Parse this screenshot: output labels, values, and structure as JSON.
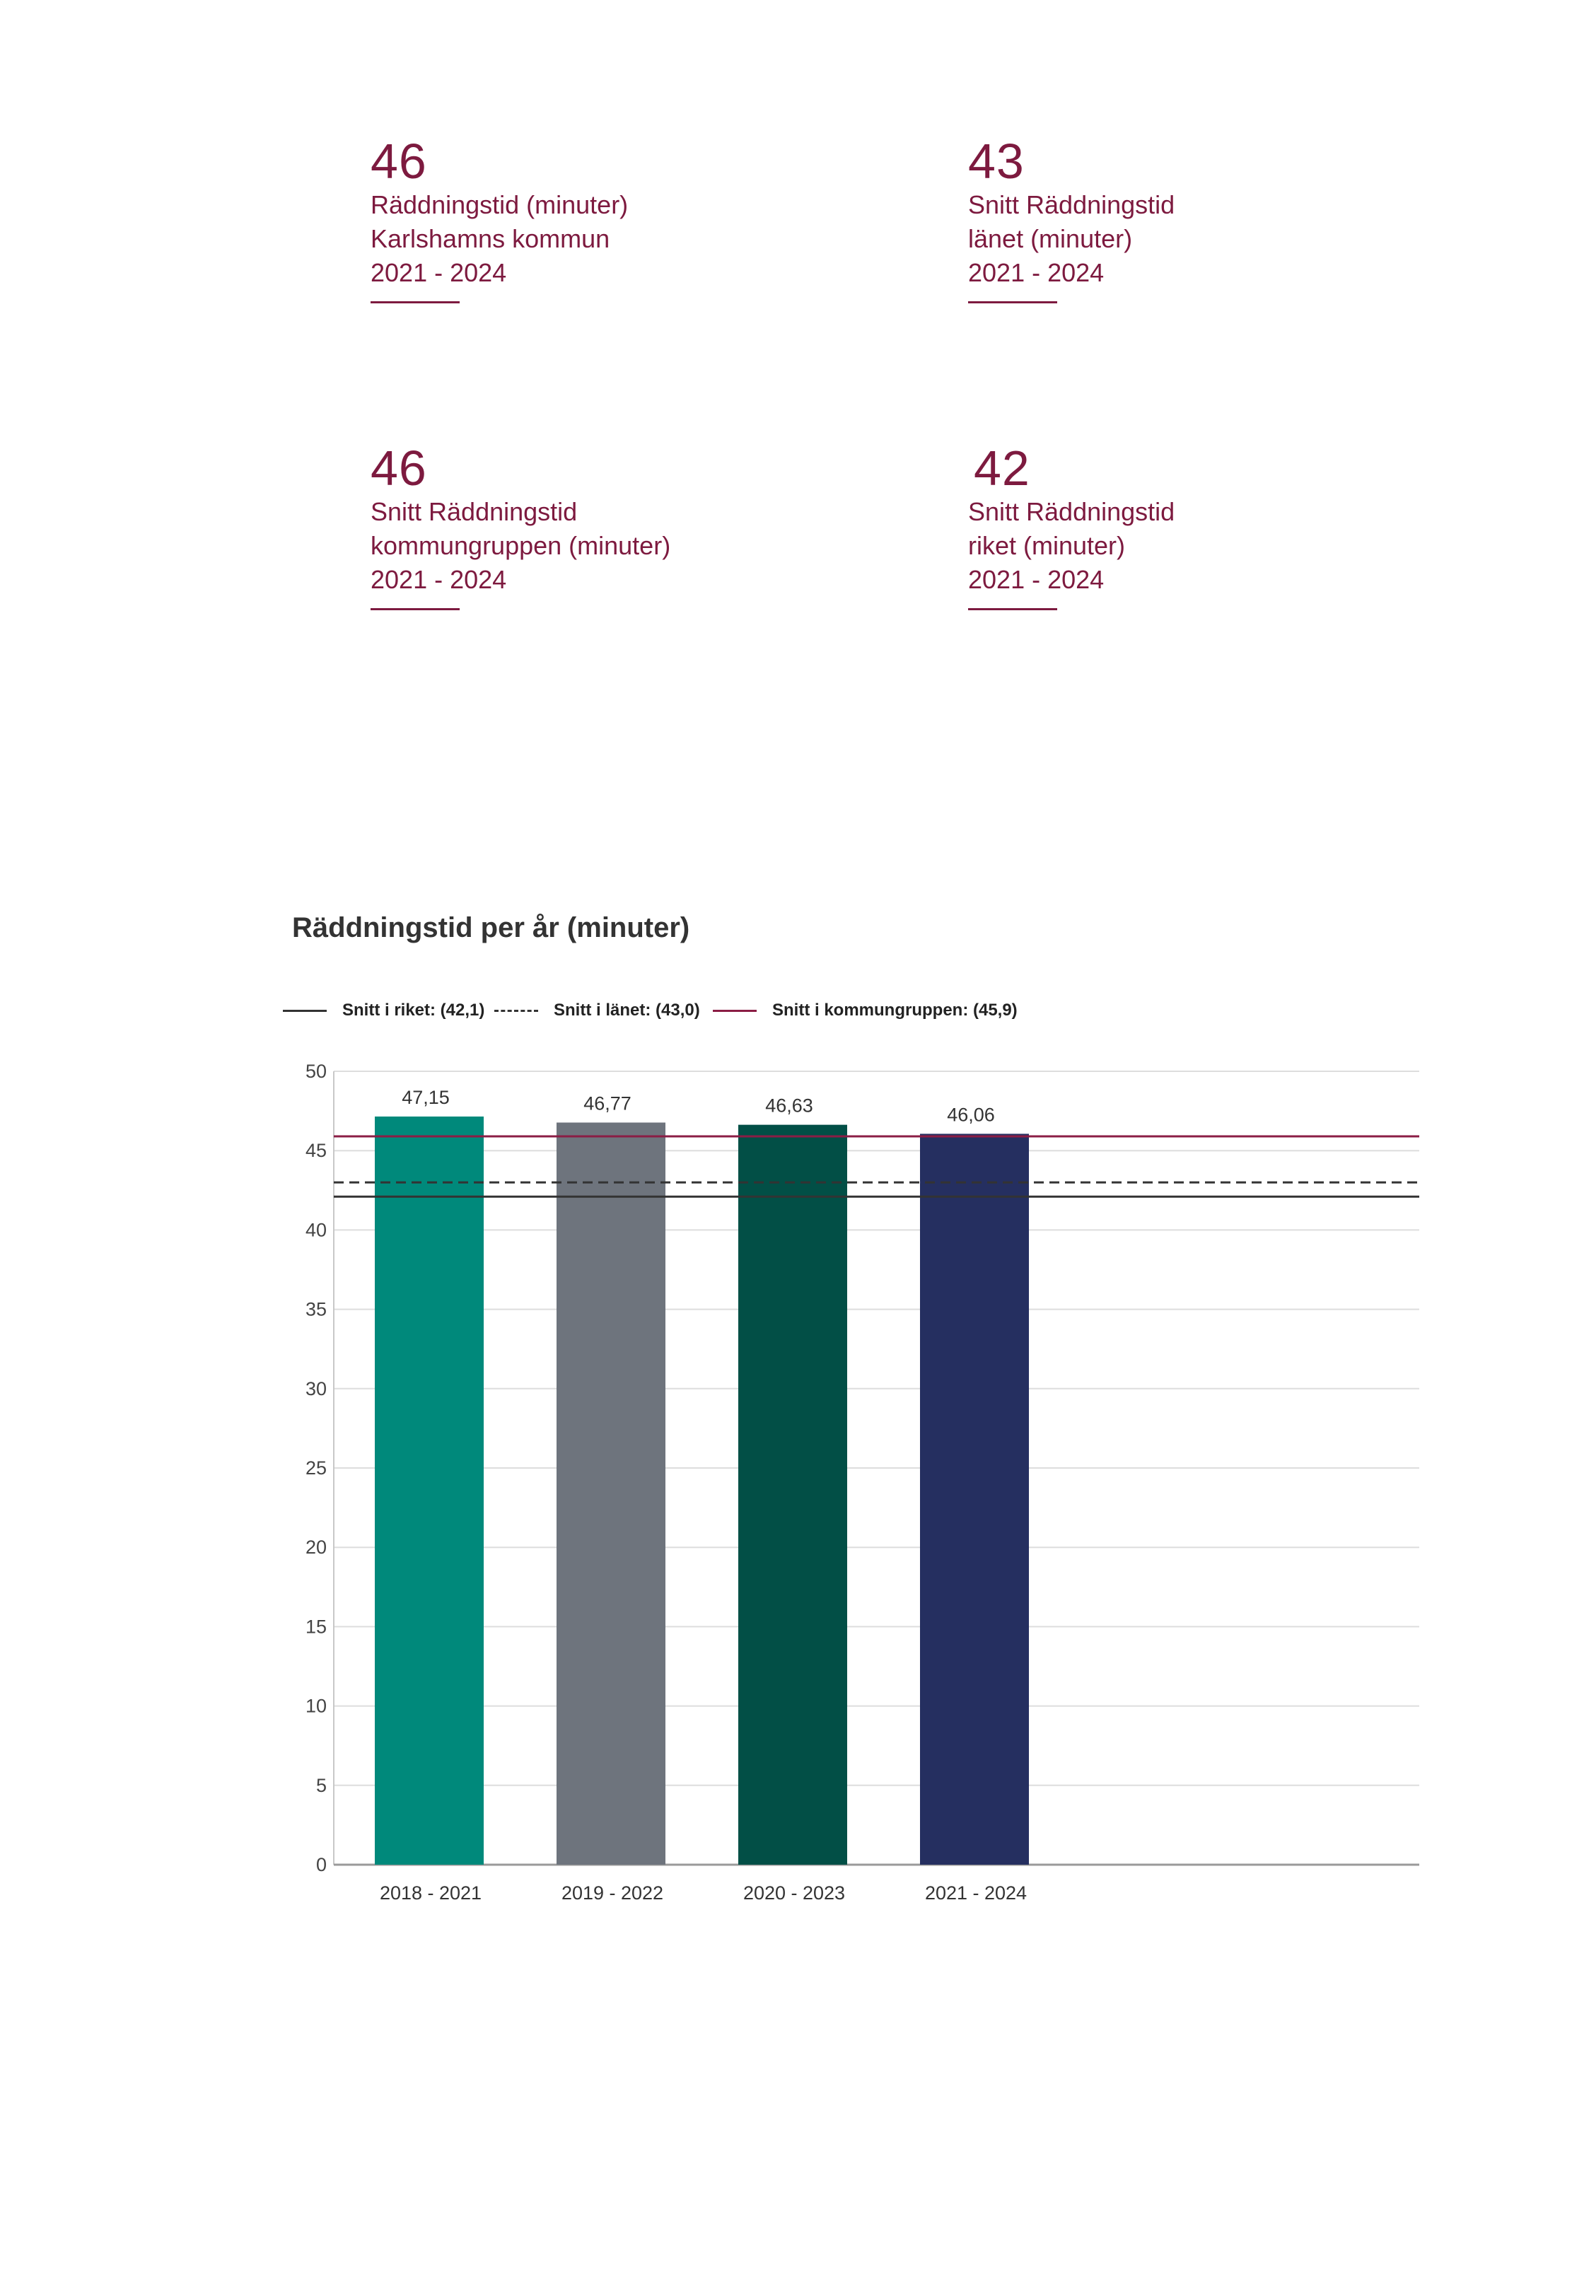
{
  "stats": [
    {
      "value": "46",
      "lines": [
        "Räddningstid (minuter)",
        "Karlshamns kommun",
        "2021 - 2024"
      ]
    },
    {
      "value": "43",
      "lines": [
        "Snitt Räddningstid",
        "länet (minuter)",
        "2021 - 2024"
      ]
    },
    {
      "value": "46",
      "lines": [
        "Snitt Räddningstid",
        "kommungruppen (minuter)",
        "2021 - 2024"
      ]
    },
    {
      "value": "42",
      "lines": [
        "Snitt Räddningstid",
        "riket (minuter)",
        "2021 - 2024"
      ]
    }
  ],
  "colors": {
    "accent": "#7d1a3f",
    "bars": [
      "#00897b",
      "#6e747d",
      "#024f46",
      "#252f60"
    ],
    "riket_line": "#333333",
    "lanet_line": "#333333",
    "kommungrupp_line": "#8b1d45",
    "grid": "#dddddd"
  },
  "chart_data": {
    "type": "bar",
    "title": "Räddningstid per år (minuter)",
    "categories": [
      "2018 - 2021",
      "2019 - 2022",
      "2020 - 2023",
      "2021 - 2024"
    ],
    "values": [
      47.15,
      46.77,
      46.63,
      46.06
    ],
    "value_labels": [
      "47,15",
      "46,77",
      "46,63",
      "46,06"
    ],
    "ylim": [
      0,
      50
    ],
    "yticks": [
      "0",
      "5",
      "10",
      "15",
      "20",
      "25",
      "30",
      "35",
      "40",
      "45",
      "50"
    ],
    "grid": true,
    "legend_position": "top-left",
    "reference_lines": [
      {
        "name": "Snitt i riket",
        "label": "Snitt i riket: (42,1)",
        "value": 42.1,
        "style": "solid"
      },
      {
        "name": "Snitt i länet",
        "label": "Snitt i länet: (43,0)",
        "value": 43.0,
        "style": "dashed"
      },
      {
        "name": "Snitt i kommungruppen",
        "label": "Snitt i kommungruppen: (45,9)",
        "value": 45.9,
        "style": "solid-accent"
      }
    ]
  }
}
